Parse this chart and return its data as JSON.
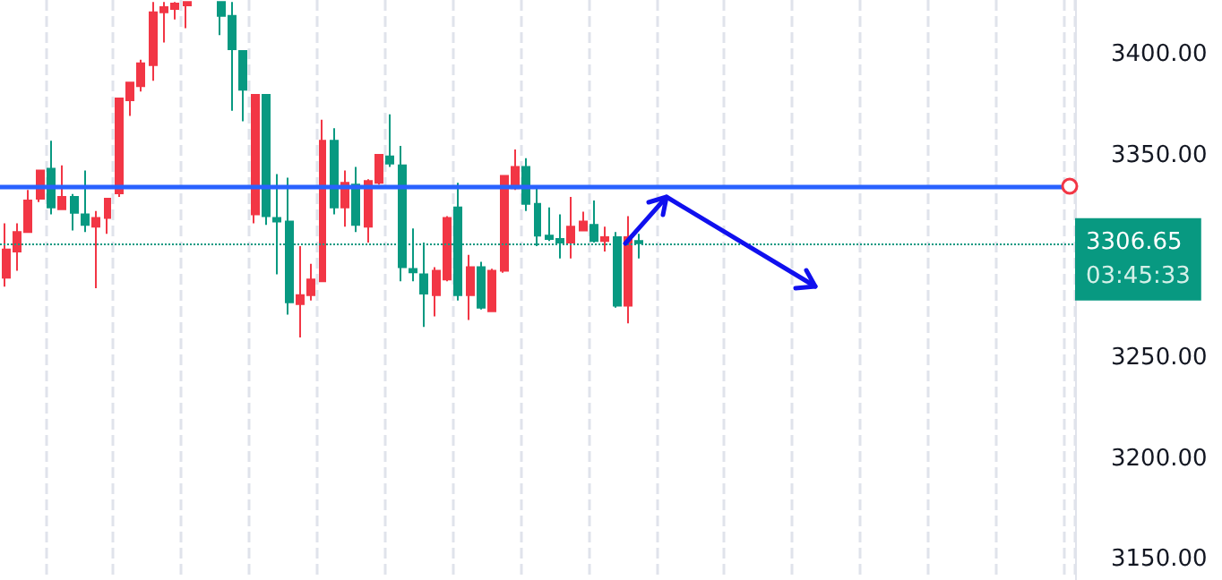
{
  "chart_data": {
    "type": "candlestick",
    "categories": [
      null,
      null,
      null,
      null,
      null,
      null,
      null,
      null,
      null,
      null,
      null,
      null,
      null,
      null,
      null,
      null,
      null,
      null,
      null,
      null,
      null,
      null,
      null,
      null,
      null,
      null,
      null,
      null,
      null,
      null,
      null,
      null,
      null,
      null,
      null,
      null,
      null,
      null,
      null,
      null,
      null,
      null,
      null,
      null,
      null,
      null,
      null,
      null,
      null,
      null,
      null,
      null,
      null,
      null,
      null,
      null,
      null,
      null,
      null,
      null,
      null,
      null,
      null,
      null,
      null,
      null,
      null,
      null,
      null,
      null,
      null,
      null,
      null,
      null,
      null,
      null,
      null,
      null,
      null,
      null,
      null,
      null,
      null,
      null,
      null,
      null,
      null,
      null,
      null,
      null,
      null,
      null,
      null,
      null,
      null
    ],
    "ohlc": [
      [
        3289.6,
        3316.5,
        3285.2,
        3303.5
      ],
      [
        3302.6,
        3316.5,
        3293.0,
        3312.2
      ],
      [
        3312.2,
        3333.0,
        3312.0,
        3327.8
      ],
      [
        3328.7,
        3342.6,
        3327.0,
        3342.6
      ],
      [
        3343.5,
        3357.4,
        3320.9,
        3324.4
      ],
      [
        3323.5,
        3345.2,
        3323.5,
        3329.6
      ],
      [
        3329.6,
        3331.0,
        3313.0,
        3321.7
      ],
      [
        3320.9,
        3342.6,
        3312.2,
        3315.7
      ],
      [
        3314.8,
        3322.6,
        3284.4,
        3319.1
      ],
      [
        3319.1,
        3328.7,
        3311.3,
        3328.7
      ],
      [
        3331.3,
        3378.3,
        3329.6,
        3378.3
      ],
      [
        3377.4,
        3386.1,
        3369.6,
        3386.1
      ],
      [
        3384.4,
        3397.4,
        3381.7,
        3395.7
      ],
      [
        3394.8,
        3426,
        3387,
        3420.9
      ],
      [
        3420.9,
        3426,
        3406,
        3423.5
      ],
      [
        3422.6,
        3426,
        3417.4,
        3425.2
      ],
      [
        3424.3,
        3426,
        3413,
        3426
      ],
      null,
      null,
      [
        3426,
        3426,
        3409.6,
        3419.1
      ],
      [
        3419.1,
        3426,
        3372.2,
        3402.6
      ],
      [
        3401.7,
        3401.7,
        3367,
        3382.6
      ],
      [
        3320.9,
        3380,
        3316.5,
        3380
      ],
      [
        3380,
        3380,
        3315.7,
        3320
      ],
      [
        3319.1,
        3340.9,
        3291.3,
        3317.4
      ],
      [
        3317.4,
        3339.1,
        3271.3,
        3277.4
      ],
      [
        3276.5,
        3305.2,
        3260,
        3280.9
      ],
      [
        3280.9,
        3296.5,
        3278.3,
        3288.7
      ],
      [
        3287.8,
        3367.8,
        3287.8,
        3357.4
      ],
      [
        3357.4,
        3363.5,
        3320.9,
        3324.4
      ],
      [
        3324.4,
        3342.6,
        3314.8,
        3336.5
      ],
      [
        3335.7,
        3344.4,
        3312.2,
        3315.7
      ],
      [
        3314.8,
        3338.3,
        3307,
        3337.4
      ],
      [
        3336.5,
        3350.4,
        3335.7,
        3350.4
      ],
      [
        3349.6,
        3370.4,
        3344.4,
        3346.1
      ],
      [
        3345.2,
        3354.8,
        3287.8,
        3294.8
      ],
      [
        3293.9,
        3313.9,
        3287.8,
        3292.2
      ],
      [
        3291.3,
        3307,
        3265.2,
        3281.7
      ],
      [
        3280.9,
        3294.8,
        3270.4,
        3293
      ],
      [
        3288.7,
        3320,
        3287.8,
        3319.1
      ],
      [
        3324.4,
        3336.5,
        3278.3,
        3280.9
      ],
      [
        3280.9,
        3300.9,
        3268.7,
        3294.8
      ],
      [
        3294.8,
        3297.4,
        3273.9,
        3274.8
      ],
      [
        3273,
        3294,
        3272.6,
        3293
      ],
      [
        3293,
        3340,
        3292,
        3340
      ],
      [
        3333.9,
        3353,
        3333,
        3344.4
      ],
      [
        3344.4,
        3348.7,
        3322.6,
        3326.1
      ],
      [
        3326.1,
        3333.9,
        3305.2,
        3310.4
      ],
      [
        3310.4,
        3324.4,
        3307.8,
        3308.7
      ],
      [
        3308.7,
        3320.9,
        3299.1,
        3307
      ],
      [
        3307,
        3329.6,
        3299.1,
        3314.8
      ],
      [
        3313,
        3322.2,
        3313,
        3317.4
      ],
      [
        3315.7,
        3327.8,
        3307,
        3307.8
      ],
      [
        3307.8,
        3314.8,
        3302.6,
        3309.6
      ],
      [
        3309.6,
        3312.2,
        3274.8,
        3275.7
      ],
      [
        3275.7,
        3320,
        3267,
        3309.6
      ],
      [
        3307.8,
        3311.3,
        3299.1,
        3306.65
      ],
      null,
      null,
      null,
      null,
      null,
      null,
      null,
      null,
      null,
      null,
      null,
      null,
      null,
      null,
      null,
      null,
      null,
      null,
      null,
      null,
      null,
      null,
      null,
      null,
      null,
      null,
      null,
      null,
      null,
      null,
      null,
      null,
      null,
      null,
      null,
      null,
      null,
      null
    ],
    "colors": [
      "#f23645",
      "#f23645",
      "#f23645",
      "#f23645",
      "#089981",
      "#f23645",
      "#089981",
      "#089981",
      "#f23645",
      "#f23645",
      "#f23645",
      "#f23645",
      "#f23645",
      "#f23645",
      "#f23645",
      "#f23645",
      "#f23645",
      null,
      null,
      "#089981",
      "#089981",
      "#089981",
      "#f23645",
      "#089981",
      "#089981",
      "#089981",
      "#f23645",
      "#f23645",
      "#f23645",
      "#089981",
      "#f23645",
      "#089981",
      "#f23645",
      "#f23645",
      "#089981",
      "#089981",
      "#089981",
      "#089981",
      "#f23645",
      "#f23645",
      "#089981",
      "#f23645",
      "#089981",
      "#f23645",
      "#f23645",
      "#f23645",
      "#089981",
      "#089981",
      "#089981",
      "#089981",
      "#f23645",
      "#f23645",
      "#089981",
      "#f23645",
      "#089981",
      "#f23645",
      "#089981",
      null,
      null,
      null,
      null,
      null,
      null,
      null,
      null,
      null,
      null,
      null,
      null,
      null,
      null,
      null,
      null,
      null,
      null,
      null,
      null,
      null,
      null,
      null,
      null,
      null,
      null,
      null,
      null,
      null,
      null,
      null,
      null,
      null,
      null,
      null,
      null,
      null,
      null
    ],
    "ylim": [
      3140,
      3427
    ],
    "yticks": [
      {
        "value": 3150,
        "label": "3150.00"
      },
      {
        "value": 3200,
        "label": "3200.00"
      },
      {
        "value": 3250,
        "label": "3250.00"
      },
      {
        "value": 3350,
        "label": "3350.00"
      },
      {
        "value": 3400,
        "label": "3400.00"
      }
    ],
    "ref_lines": [
      {
        "axis": "y",
        "value": 3335,
        "color": "#2962ff",
        "line_style": "solid"
      },
      {
        "axis": "y",
        "value": 3306.65,
        "label": "3306.65",
        "color": "#089981",
        "line_style": "dotted"
      }
    ],
    "annotations": [
      "03:45:33"
    ],
    "grid": "x",
    "tick_labels": "y"
  }
}
